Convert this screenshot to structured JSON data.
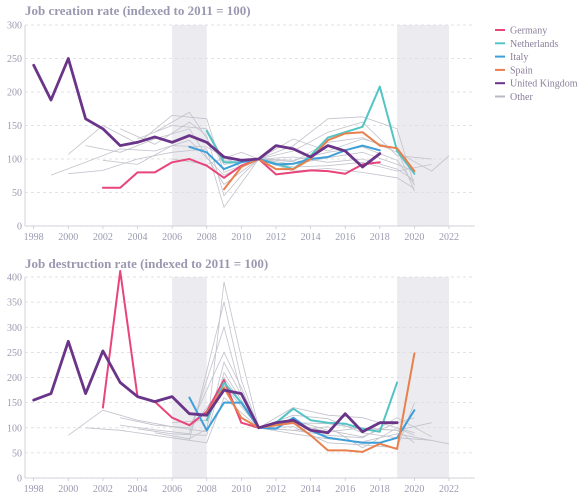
{
  "colors": {
    "Germany": "#e8457a",
    "Netherlands": "#53c4c4",
    "Italy": "#3f9fd8",
    "Spain": "#e8804e",
    "United Kingdom": "#6a3488",
    "Other": "#b8b8c6"
  },
  "legend": [
    "Germany",
    "Netherlands",
    "Italy",
    "Spain",
    "United Kingdom",
    "Other"
  ],
  "chart_data": [
    {
      "type": "line",
      "title": "Job creation rate (indexed to 2011 = 100)",
      "xlim": [
        1997.5,
        2023.5
      ],
      "ylim": [
        0,
        300
      ],
      "xticks": [
        1998,
        2000,
        2002,
        2004,
        2006,
        2008,
        2010,
        2012,
        2014,
        2016,
        2018,
        2020,
        2022
      ],
      "yticks": [
        0,
        50,
        100,
        150,
        200,
        250,
        300
      ],
      "shaded_ranges": [
        [
          2006,
          2008
        ],
        [
          2019,
          2022
        ]
      ],
      "series": [
        {
          "name": "Germany",
          "x": [
            2002,
            2003,
            2004,
            2005,
            2006,
            2007,
            2008,
            2009,
            2010,
            2011,
            2012,
            2013,
            2014,
            2015,
            2016,
            2017,
            2018
          ],
          "y": [
            57,
            57,
            80,
            80,
            95,
            100,
            90,
            72,
            90,
            100,
            77,
            80,
            83,
            82,
            78,
            92,
            95
          ]
        },
        {
          "name": "Netherlands",
          "x": [
            2008,
            2009,
            2010,
            2011,
            2012,
            2013,
            2014,
            2015,
            2016,
            2017,
            2018,
            2019,
            2020
          ],
          "y": [
            142,
            95,
            95,
            100,
            93,
            85,
            105,
            132,
            140,
            148,
            208,
            112,
            78
          ]
        },
        {
          "name": "Italy",
          "x": [
            2007,
            2008,
            2009,
            2010,
            2011,
            2012,
            2013,
            2014,
            2015,
            2016,
            2017,
            2018
          ],
          "y": [
            118,
            110,
            85,
            95,
            100,
            92,
            93,
            100,
            103,
            113,
            120,
            113
          ]
        },
        {
          "name": "Spain",
          "x": [
            2009,
            2010,
            2011,
            2012,
            2013,
            2014,
            2015,
            2016,
            2017,
            2018,
            2019,
            2020
          ],
          "y": [
            55,
            88,
            100,
            85,
            85,
            100,
            128,
            138,
            140,
            120,
            116,
            82
          ]
        },
        {
          "name": "United Kingdom",
          "x": [
            1998,
            1999,
            2000,
            2001,
            2002,
            2003,
            2004,
            2005,
            2006,
            2007,
            2008,
            2009,
            2010,
            2011,
            2012,
            2013,
            2014,
            2015,
            2016,
            2017,
            2018
          ],
          "y": [
            240,
            188,
            250,
            160,
            145,
            120,
            125,
            133,
            125,
            135,
            125,
            103,
            98,
            100,
            120,
            115,
            103,
            120,
            112,
            88,
            108
          ]
        }
      ],
      "others": [
        [
          [
            2000,
            107
          ],
          [
            2002,
            150
          ],
          [
            2004,
            123
          ],
          [
            2006,
            165
          ],
          [
            2008,
            160
          ],
          [
            2009,
            80
          ],
          [
            2011,
            100
          ],
          [
            2013,
            112
          ],
          [
            2015,
            140
          ],
          [
            2017,
            155
          ],
          [
            2019,
            105
          ],
          [
            2021,
            100
          ]
        ],
        [
          [
            2001,
            120
          ],
          [
            2003,
            110
          ],
          [
            2005,
            130
          ],
          [
            2007,
            145
          ],
          [
            2009,
            62
          ],
          [
            2011,
            100
          ],
          [
            2013,
            92
          ],
          [
            2015,
            102
          ],
          [
            2017,
            110
          ],
          [
            2019,
            92
          ],
          [
            2020,
            82
          ]
        ],
        [
          [
            2003,
            145
          ],
          [
            2005,
            122
          ],
          [
            2007,
            155
          ],
          [
            2008,
            135
          ],
          [
            2009,
            45
          ],
          [
            2010,
            75
          ],
          [
            2011,
            100
          ],
          [
            2013,
            130
          ],
          [
            2015,
            112
          ],
          [
            2017,
            130
          ],
          [
            2019,
            115
          ],
          [
            2020,
            52
          ]
        ],
        [
          [
            2000,
            78
          ],
          [
            2002,
            83
          ],
          [
            2004,
            100
          ],
          [
            2006,
            110
          ],
          [
            2008,
            115
          ],
          [
            2009,
            28
          ],
          [
            2011,
            100
          ],
          [
            2013,
            120
          ],
          [
            2015,
            160
          ],
          [
            2017,
            163
          ],
          [
            2019,
            145
          ],
          [
            2020,
            60
          ]
        ],
        [
          [
            2004,
            130
          ],
          [
            2006,
            150
          ],
          [
            2008,
            145
          ],
          [
            2009,
            98
          ],
          [
            2011,
            100
          ],
          [
            2013,
            103
          ],
          [
            2015,
            95
          ],
          [
            2017,
            100
          ],
          [
            2019,
            85
          ],
          [
            2020,
            68
          ]
        ],
        [
          [
            1999,
            76
          ],
          [
            2001,
            95
          ],
          [
            2003,
            115
          ],
          [
            2005,
            112
          ],
          [
            2007,
            128
          ],
          [
            2009,
            76
          ],
          [
            2011,
            100
          ],
          [
            2013,
            88
          ],
          [
            2015,
            90
          ],
          [
            2017,
            95
          ],
          [
            2019,
            82
          ],
          [
            2021,
            92
          ]
        ],
        [
          [
            2005,
            140
          ],
          [
            2007,
            170
          ],
          [
            2009,
            92
          ],
          [
            2011,
            100
          ],
          [
            2013,
            98
          ],
          [
            2015,
            110
          ],
          [
            2017,
            118
          ],
          [
            2019,
            98
          ],
          [
            2020,
            62
          ]
        ],
        [
          [
            2002,
            98
          ],
          [
            2004,
            92
          ],
          [
            2006,
            120
          ],
          [
            2008,
            118
          ],
          [
            2010,
            88
          ],
          [
            2011,
            100
          ],
          [
            2013,
            82
          ],
          [
            2015,
            86
          ],
          [
            2017,
            80
          ],
          [
            2019,
            72
          ],
          [
            2020,
            56
          ]
        ],
        [
          [
            2006,
            100
          ],
          [
            2008,
            92
          ],
          [
            2010,
            110
          ],
          [
            2011,
            100
          ],
          [
            2013,
            96
          ],
          [
            2015,
            125
          ],
          [
            2017,
            132
          ],
          [
            2019,
            110
          ],
          [
            2021,
            82
          ],
          [
            2022,
            105
          ]
        ]
      ]
    },
    {
      "type": "line",
      "title": "Job destruction rate (indexed to 2011 = 100)",
      "xlim": [
        1997.5,
        2023.5
      ],
      "ylim": [
        0,
        400
      ],
      "xticks": [
        1998,
        2000,
        2002,
        2004,
        2006,
        2008,
        2010,
        2012,
        2014,
        2016,
        2018,
        2020,
        2022
      ],
      "yticks": [
        0,
        50,
        100,
        150,
        200,
        250,
        300,
        350,
        400
      ],
      "shaded_ranges": [
        [
          2006,
          2008
        ],
        [
          2019,
          2022
        ]
      ],
      "series": [
        {
          "name": "Germany",
          "x": [
            2002,
            2003,
            2004,
            2005,
            2006,
            2007,
            2008,
            2009,
            2010,
            2011,
            2012,
            2013
          ],
          "y": [
            140,
            412,
            162,
            152,
            120,
            105,
            132,
            195,
            110,
            100,
            110,
            112
          ]
        },
        {
          "name": "Netherlands",
          "x": [
            2008,
            2009,
            2010,
            2011,
            2012,
            2013,
            2014,
            2015,
            2016,
            2017,
            2018,
            2019
          ],
          "y": [
            115,
            190,
            150,
            100,
            110,
            138,
            115,
            110,
            108,
            98,
            92,
            190
          ]
        },
        {
          "name": "Italy",
          "x": [
            2007,
            2008,
            2009,
            2010,
            2011,
            2012,
            2013,
            2014,
            2015,
            2016,
            2017,
            2018,
            2019,
            2020
          ],
          "y": [
            160,
            95,
            150,
            150,
            100,
            98,
            120,
            95,
            80,
            75,
            70,
            70,
            80,
            135
          ]
        },
        {
          "name": "Spain",
          "x": [
            2008,
            2009,
            2010,
            2011,
            2012,
            2013,
            2014,
            2015,
            2016,
            2017,
            2018,
            2019,
            2020
          ],
          "y": [
            130,
            180,
            120,
            100,
            105,
            110,
            85,
            55,
            55,
            52,
            68,
            58,
            248
          ]
        },
        {
          "name": "United Kingdom",
          "x": [
            1998,
            1999,
            2000,
            2001,
            2002,
            2003,
            2004,
            2005,
            2006,
            2007,
            2008,
            2009,
            2010,
            2011,
            2012,
            2013,
            2014,
            2015,
            2016,
            2017,
            2018,
            2019
          ],
          "y": [
            155,
            168,
            272,
            168,
            253,
            190,
            162,
            152,
            162,
            128,
            125,
            175,
            168,
            100,
            110,
            115,
            95,
            90,
            128,
            92,
            110,
            110
          ]
        }
      ],
      "others": [
        [
          [
            2000,
            85
          ],
          [
            2002,
            135
          ],
          [
            2004,
            115
          ],
          [
            2006,
            102
          ],
          [
            2008,
            92
          ],
          [
            2009,
            390
          ],
          [
            2010,
            240
          ],
          [
            2011,
            100
          ],
          [
            2013,
            95
          ],
          [
            2015,
            85
          ],
          [
            2017,
            80
          ],
          [
            2019,
            120
          ],
          [
            2021,
            82
          ]
        ],
        [
          [
            2001,
            100
          ],
          [
            2003,
            95
          ],
          [
            2005,
            85
          ],
          [
            2007,
            75
          ],
          [
            2009,
            350
          ],
          [
            2010,
            195
          ],
          [
            2011,
            100
          ],
          [
            2013,
            110
          ],
          [
            2015,
            108
          ],
          [
            2017,
            98
          ],
          [
            2019,
            95
          ],
          [
            2020,
            70
          ]
        ],
        [
          [
            2003,
            120
          ],
          [
            2005,
            105
          ],
          [
            2007,
            100
          ],
          [
            2009,
            250
          ],
          [
            2010,
            180
          ],
          [
            2011,
            100
          ],
          [
            2013,
            140
          ],
          [
            2015,
            125
          ],
          [
            2017,
            120
          ],
          [
            2019,
            100
          ],
          [
            2020,
            85
          ]
        ],
        [
          [
            2004,
            98
          ],
          [
            2006,
            88
          ],
          [
            2008,
            85
          ],
          [
            2009,
            210
          ],
          [
            2011,
            100
          ],
          [
            2013,
            125
          ],
          [
            2015,
            118
          ],
          [
            2017,
            90
          ],
          [
            2019,
            80
          ],
          [
            2021,
            75
          ]
        ],
        [
          [
            2005,
            90
          ],
          [
            2007,
            78
          ],
          [
            2008,
            98
          ],
          [
            2009,
            230
          ],
          [
            2011,
            100
          ],
          [
            2013,
            115
          ],
          [
            2015,
            95
          ],
          [
            2017,
            82
          ],
          [
            2019,
            110
          ],
          [
            2020,
            120
          ]
        ],
        [
          [
            2006,
            80
          ],
          [
            2008,
            70
          ],
          [
            2009,
            160
          ],
          [
            2011,
            100
          ],
          [
            2013,
            102
          ],
          [
            2015,
            70
          ],
          [
            2017,
            66
          ],
          [
            2019,
            60
          ],
          [
            2020,
            150
          ]
        ],
        [
          [
            2003,
            105
          ],
          [
            2005,
            96
          ],
          [
            2007,
            88
          ],
          [
            2009,
            300
          ],
          [
            2010,
            170
          ],
          [
            2011,
            100
          ],
          [
            2013,
            88
          ],
          [
            2015,
            78
          ],
          [
            2017,
            72
          ],
          [
            2019,
            88
          ],
          [
            2022,
            68
          ]
        ],
        [
          [
            2007,
            95
          ],
          [
            2009,
            185
          ],
          [
            2011,
            100
          ],
          [
            2013,
            108
          ],
          [
            2015,
            92
          ],
          [
            2017,
            100
          ],
          [
            2019,
            95
          ],
          [
            2021,
            110
          ]
        ],
        [
          [
            2006,
            110
          ],
          [
            2008,
            115
          ],
          [
            2009,
            200
          ],
          [
            2011,
            100
          ],
          [
            2013,
            95
          ],
          [
            2015,
            102
          ],
          [
            2017,
            60
          ],
          [
            2019,
            100
          ],
          [
            2020,
            90
          ]
        ]
      ]
    }
  ]
}
